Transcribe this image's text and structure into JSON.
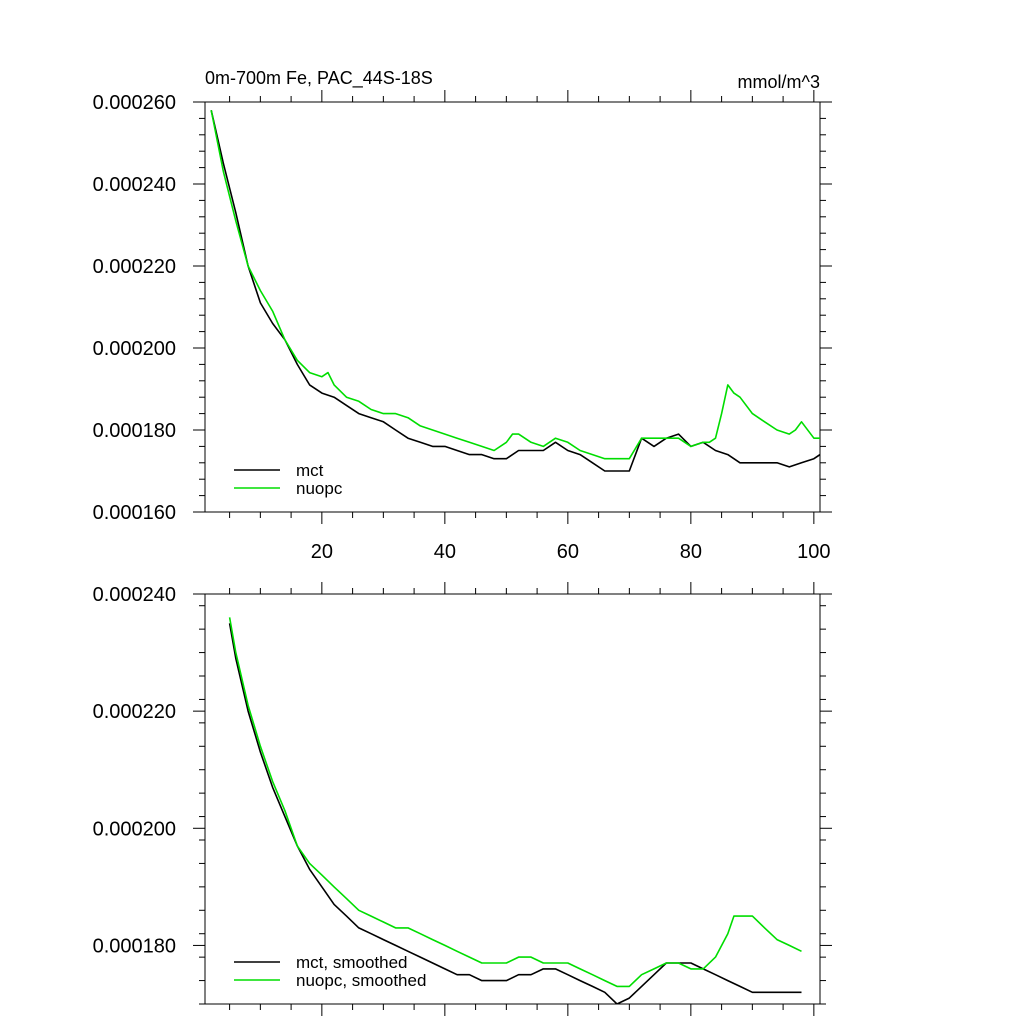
{
  "chart_data": [
    {
      "type": "line",
      "title": "0m-700m Fe, PAC_44S-18S",
      "units": "mmol/m^3",
      "xlim": [
        1,
        101
      ],
      "ylim": [
        0.00016,
        0.00026
      ],
      "xticks": [
        20,
        40,
        60,
        80,
        100
      ],
      "xtick_labels": [
        "20",
        "40",
        "60",
        "80",
        "100"
      ],
      "yticks": [
        0.00016,
        0.00018,
        0.0002,
        0.00022,
        0.00024,
        0.00026
      ],
      "ytick_labels": [
        "0.000160",
        "0.000180",
        "0.000200",
        "0.000220",
        "0.000240",
        "0.000260"
      ],
      "legend_location": "bottom-left",
      "grid": false,
      "series": [
        {
          "name": "mct",
          "color": "#000000",
          "x": [
            2,
            4,
            6,
            8,
            10,
            12,
            14,
            16,
            18,
            20,
            22,
            24,
            26,
            28,
            30,
            32,
            34,
            36,
            38,
            40,
            42,
            44,
            46,
            48,
            50,
            52,
            54,
            56,
            58,
            60,
            62,
            64,
            66,
            68,
            70,
            72,
            74,
            76,
            78,
            80,
            82,
            84,
            86,
            88,
            90,
            92,
            94,
            96,
            98,
            100,
            101
          ],
          "y": [
            0.000258,
            0.000245,
            0.000233,
            0.00022,
            0.000211,
            0.000206,
            0.000202,
            0.000196,
            0.000191,
            0.000189,
            0.000188,
            0.000186,
            0.000184,
            0.000183,
            0.000182,
            0.00018,
            0.000178,
            0.000177,
            0.000176,
            0.000176,
            0.000175,
            0.000174,
            0.000174,
            0.000173,
            0.000173,
            0.000175,
            0.000175,
            0.000175,
            0.000177,
            0.000175,
            0.000174,
            0.000172,
            0.00017,
            0.00017,
            0.00017,
            0.000178,
            0.000176,
            0.000178,
            0.000179,
            0.000176,
            0.000177,
            0.000175,
            0.000174,
            0.000172,
            0.000172,
            0.000172,
            0.000172,
            0.000171,
            0.000172,
            0.000173,
            0.000174
          ]
        },
        {
          "name": "nuopc",
          "color": "#00dd00",
          "x": [
            2,
            4,
            6,
            8,
            10,
            12,
            14,
            16,
            18,
            20,
            21,
            22,
            24,
            26,
            28,
            30,
            32,
            34,
            36,
            38,
            40,
            42,
            44,
            46,
            48,
            50,
            51,
            52,
            54,
            56,
            58,
            60,
            62,
            64,
            66,
            68,
            70,
            72,
            74,
            76,
            78,
            80,
            82,
            83,
            84,
            85,
            86,
            87,
            88,
            90,
            92,
            94,
            96,
            97,
            98,
            100,
            101
          ],
          "y": [
            0.000258,
            0.000243,
            0.000231,
            0.00022,
            0.000214,
            0.000209,
            0.000202,
            0.000197,
            0.000194,
            0.000193,
            0.000194,
            0.000191,
            0.000188,
            0.000187,
            0.000185,
            0.000184,
            0.000184,
            0.000183,
            0.000181,
            0.00018,
            0.000179,
            0.000178,
            0.000177,
            0.000176,
            0.000175,
            0.000177,
            0.000179,
            0.000179,
            0.000177,
            0.000176,
            0.000178,
            0.000177,
            0.000175,
            0.000174,
            0.000173,
            0.000173,
            0.000173,
            0.000178,
            0.000178,
            0.000178,
            0.000178,
            0.000176,
            0.000177,
            0.000177,
            0.000178,
            0.000184,
            0.000191,
            0.000189,
            0.000188,
            0.000184,
            0.000182,
            0.00018,
            0.000179,
            0.00018,
            0.000182,
            0.000178,
            0.000178
          ]
        }
      ]
    },
    {
      "type": "line",
      "title": "",
      "xlim": [
        1,
        101
      ],
      "ylim": [
        0.00017,
        0.00024
      ],
      "xticks": [
        20,
        40,
        60,
        80,
        100
      ],
      "xtick_labels": [
        "",
        "",
        "",
        "",
        ""
      ],
      "yticks": [
        0.00018,
        0.0002,
        0.00022,
        0.00024
      ],
      "ytick_labels": [
        "0.000180",
        "0.000200",
        "0.000220",
        "0.000240"
      ],
      "legend_location": "bottom-left",
      "grid": false,
      "series": [
        {
          "name": "mct, smoothed",
          "color": "#000000",
          "x": [
            5,
            6,
            8,
            10,
            12,
            14,
            16,
            18,
            20,
            22,
            24,
            26,
            28,
            30,
            32,
            34,
            36,
            38,
            40,
            42,
            44,
            46,
            48,
            50,
            52,
            54,
            56,
            58,
            60,
            62,
            64,
            66,
            68,
            70,
            72,
            74,
            76,
            78,
            80,
            82,
            84,
            86,
            88,
            90,
            92,
            94,
            96,
            98
          ],
          "y": [
            0.000235,
            0.000229,
            0.00022,
            0.000213,
            0.000207,
            0.000202,
            0.000197,
            0.000193,
            0.00019,
            0.000187,
            0.000185,
            0.000183,
            0.000182,
            0.000181,
            0.00018,
            0.000179,
            0.000178,
            0.000177,
            0.000176,
            0.000175,
            0.000175,
            0.000174,
            0.000174,
            0.000174,
            0.000175,
            0.000175,
            0.000176,
            0.000176,
            0.000175,
            0.000174,
            0.000173,
            0.000172,
            0.00017,
            0.000171,
            0.000173,
            0.000175,
            0.000177,
            0.000177,
            0.000177,
            0.000176,
            0.000175,
            0.000174,
            0.000173,
            0.000172,
            0.000172,
            0.000172,
            0.000172,
            0.000172
          ]
        },
        {
          "name": "nuopc, smoothed",
          "color": "#00dd00",
          "x": [
            5,
            6,
            8,
            10,
            12,
            14,
            16,
            18,
            20,
            22,
            24,
            26,
            28,
            30,
            32,
            34,
            36,
            38,
            40,
            42,
            44,
            46,
            48,
            50,
            52,
            54,
            56,
            58,
            60,
            62,
            64,
            66,
            68,
            70,
            72,
            74,
            76,
            78,
            80,
            82,
            84,
            86,
            87,
            88,
            90,
            92,
            94,
            96,
            98
          ],
          "y": [
            0.000236,
            0.00023,
            0.000221,
            0.000214,
            0.000208,
            0.000203,
            0.000197,
            0.000194,
            0.000192,
            0.00019,
            0.000188,
            0.000186,
            0.000185,
            0.000184,
            0.000183,
            0.000183,
            0.000182,
            0.000181,
            0.00018,
            0.000179,
            0.000178,
            0.000177,
            0.000177,
            0.000177,
            0.000178,
            0.000178,
            0.000177,
            0.000177,
            0.000177,
            0.000176,
            0.000175,
            0.000174,
            0.000173,
            0.000173,
            0.000175,
            0.000176,
            0.000177,
            0.000177,
            0.000176,
            0.000176,
            0.000178,
            0.000182,
            0.000185,
            0.000185,
            0.000185,
            0.000183,
            0.000181,
            0.00018,
            0.000179
          ]
        }
      ]
    }
  ]
}
